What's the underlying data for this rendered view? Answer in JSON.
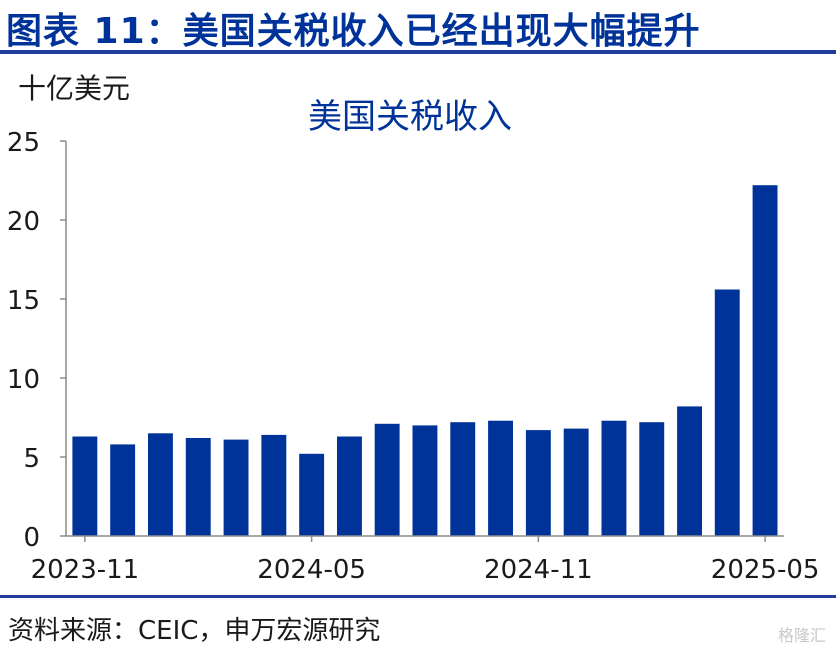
{
  "header": {
    "title": "图表 11：美国关税收入已经出现大幅提升"
  },
  "footer": {
    "source": "资料来源：CEIC，申万宏源研究",
    "watermark": "格隆汇"
  },
  "chart_data": {
    "type": "bar",
    "title": "美国关税收入",
    "ylabel": "十亿美元",
    "xlabel": "",
    "ylim": [
      0,
      25
    ],
    "yticks": [
      0,
      5,
      10,
      15,
      20,
      25
    ],
    "grid": false,
    "categories": [
      "2023-11",
      "2023-12",
      "2024-01",
      "2024-02",
      "2024-03",
      "2024-04",
      "2024-05",
      "2024-06",
      "2024-07",
      "2024-08",
      "2024-09",
      "2024-10",
      "2024-11",
      "2024-12",
      "2025-01",
      "2025-02",
      "2025-03",
      "2025-04",
      "2025-05"
    ],
    "x_tick_labels": [
      "2023-11",
      "2024-05",
      "2024-11",
      "2025-05"
    ],
    "values": [
      6.3,
      5.8,
      6.5,
      6.2,
      6.1,
      6.4,
      5.2,
      6.3,
      7.1,
      7.0,
      7.2,
      7.3,
      6.7,
      6.8,
      7.3,
      7.2,
      8.2,
      15.6,
      22.2
    ],
    "bar_color": "#003399"
  }
}
